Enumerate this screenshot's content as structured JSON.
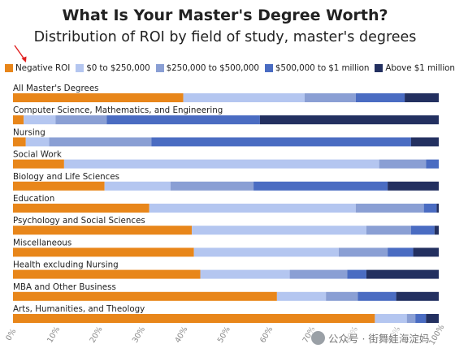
{
  "title": "What Is Your Master's Degree Worth?",
  "subtitle": "Distribution of ROI by field of study, master's degrees",
  "watermark": "公众号 · 街舞娃海淀妈",
  "chart_data": {
    "type": "bar",
    "stacked": true,
    "orientation": "horizontal",
    "title": "What Is Your Master's Degree Worth?",
    "subtitle": "Distribution of ROI by field of study, master's degrees",
    "xlim": [
      0,
      100
    ],
    "x_ticks": [
      "0%",
      "10%",
      "20%",
      "30%",
      "40%",
      "50%",
      "60%",
      "70%",
      "80%",
      "90%",
      "100%"
    ],
    "legend_position": "top",
    "grid": false,
    "categories": [
      "All Master's Degrees",
      "Computer Science, Mathematics, and Engineering",
      "Nursing",
      "Social Work",
      "Biology and Life Sciences",
      "Education",
      "Psychology and Social Sciences",
      "Miscellaneous",
      "Health excluding Nursing",
      "MBA and Other Business",
      "Arts, Humanities, and Theology"
    ],
    "series": [
      {
        "name": "Negative ROI",
        "color": "#e8861a",
        "values": [
          40,
          2.5,
          3,
          12,
          21.5,
          32,
          42,
          42.5,
          44,
          62,
          85
        ]
      },
      {
        "name": "$0 to $250,000",
        "color": "#b4c6f0",
        "values": [
          28.5,
          7.5,
          5.5,
          74,
          15.5,
          48.5,
          41,
          34,
          21,
          11.5,
          7.5
        ]
      },
      {
        "name": "$250,000 to $500,000",
        "color": "#8a9fd4",
        "values": [
          12,
          12,
          24,
          11,
          19.5,
          16,
          10.5,
          11.5,
          13.5,
          7.5,
          2
        ]
      },
      {
        "name": "$500,000 to $1 million",
        "color": "#4a6cc2",
        "values": [
          11.5,
          36,
          61,
          3,
          31.5,
          3,
          5.5,
          6,
          4.5,
          9,
          2.5
        ]
      },
      {
        "name": "Above $1 million",
        "color": "#233060",
        "values": [
          8,
          42,
          6.5,
          0,
          12,
          0.5,
          1,
          6,
          17,
          10,
          3
        ]
      }
    ]
  }
}
